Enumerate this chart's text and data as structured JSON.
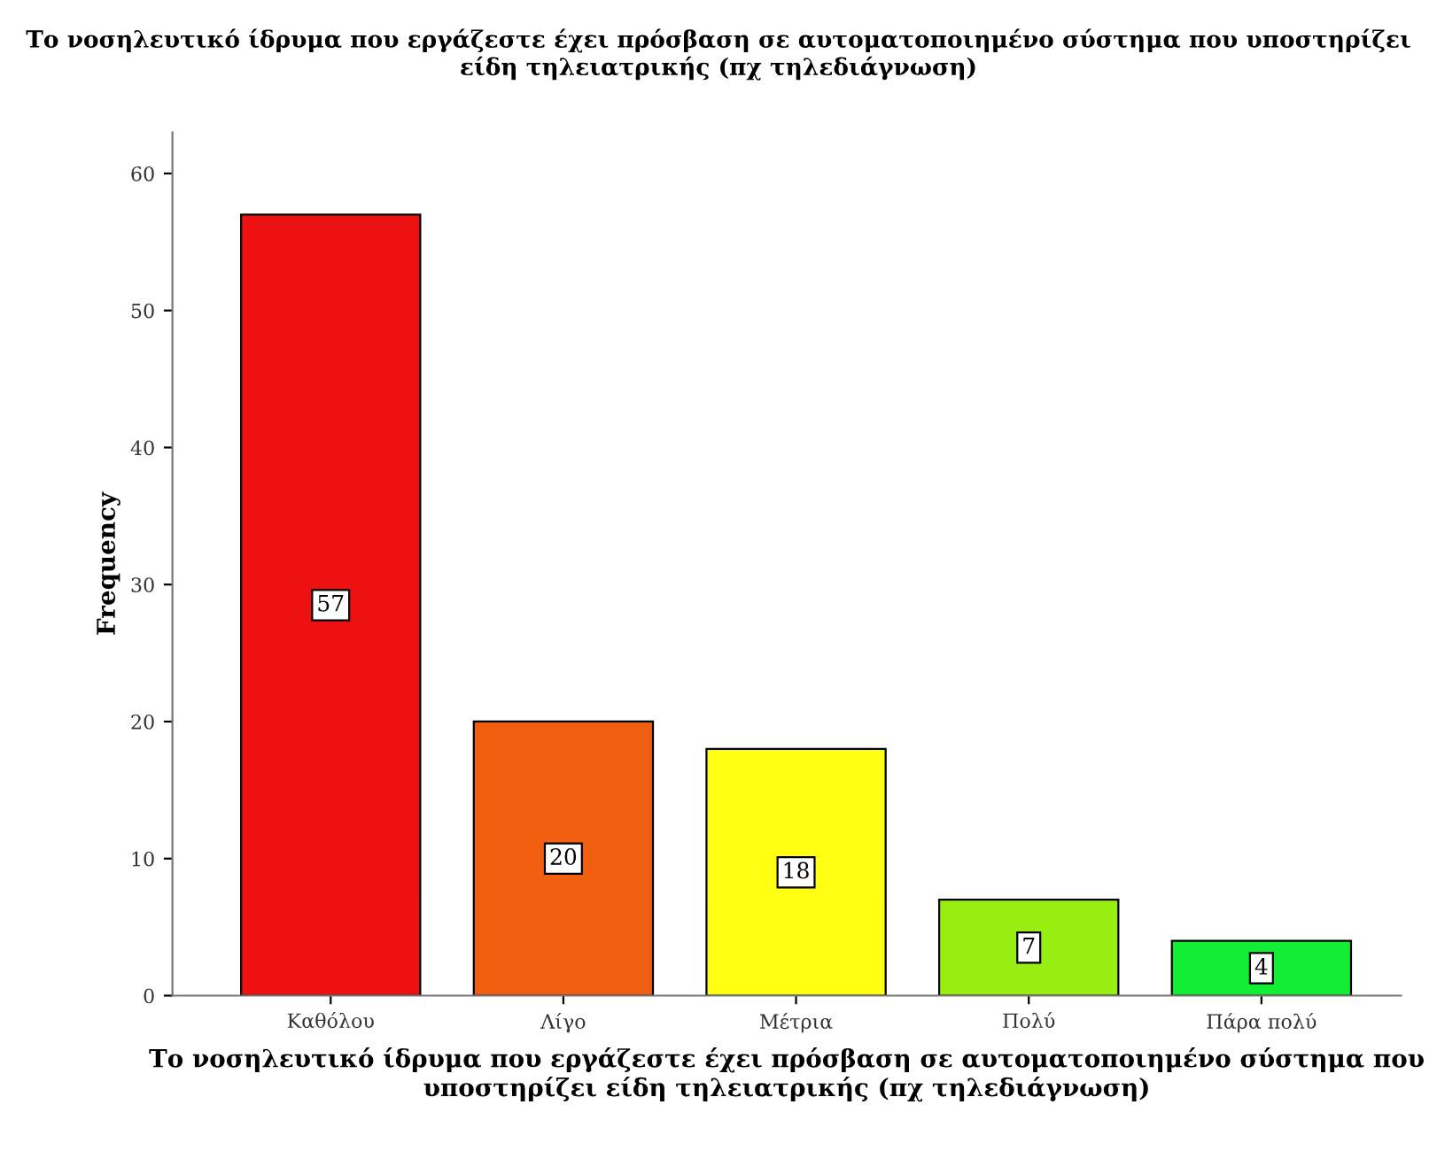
{
  "chart_data": {
    "type": "bar",
    "title": "Το νοσηλευτικό ίδρυμα που εργάζεστε έχει πρόσβαση σε αυτοματοποιημένο σύστημα που υποστηρίζει είδη τηλειατρικής (πχ τηλεδιάγνωση)",
    "xlabel": "Το νοσηλευτικό ίδρυμα που εργάζεστε έχει πρόσβαση σε αυτοματοποιημένο σύστημα που υποστηρίζει είδη τηλειατρικής (πχ τηλεδιάγνωση)",
    "ylabel": "Frequency",
    "categories": [
      "Καθόλου",
      "Λίγο",
      "Μέτρια",
      "Πολύ",
      "Πάρα πολύ"
    ],
    "values": [
      57,
      20,
      18,
      7,
      4
    ],
    "colors": [
      "#ee1111",
      "#f06010",
      "#ffff11",
      "#99ee11",
      "#11ee33"
    ],
    "ylim": [
      0,
      63
    ],
    "yticks": [
      0,
      10,
      20,
      30,
      40,
      50,
      60
    ],
    "grid": false,
    "data_labels": true
  }
}
